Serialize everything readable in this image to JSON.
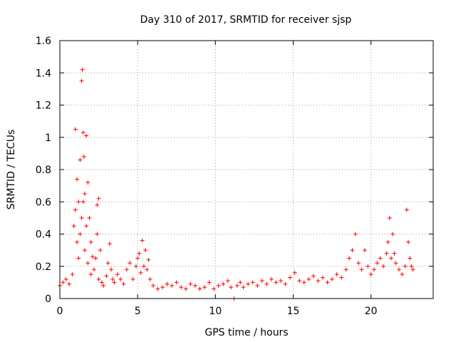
{
  "chart_data": {
    "type": "scatter",
    "title": "Day 310 of 2017, SRMTID for receiver sjsp",
    "xlabel": "GPS time / hours",
    "ylabel": "SRMTID / TECUs",
    "xlim": [
      0,
      24
    ],
    "ylim": [
      0,
      1.6
    ],
    "xticks": [
      0,
      5,
      10,
      15,
      20
    ],
    "xtick_labels": [
      "0",
      "5",
      "10",
      "15",
      "20"
    ],
    "yticks": [
      0,
      0.2,
      0.4,
      0.6,
      0.8,
      1.0,
      1.2,
      1.4,
      1.6
    ],
    "ytick_labels": [
      "0",
      "0.2",
      "0.4",
      "0.6",
      "0.8",
      "1",
      "1.2",
      "1.4",
      "1.6"
    ],
    "grid": true,
    "marker": "+",
    "color": "#ff0000",
    "series": [
      {
        "name": "SRMTID",
        "x": [
          0.0,
          0.2,
          0.4,
          0.6,
          0.8,
          0.9,
          1.0,
          1.0,
          1.1,
          1.1,
          1.2,
          1.2,
          1.3,
          1.3,
          1.4,
          1.4,
          1.45,
          1.5,
          1.5,
          1.55,
          1.6,
          1.6,
          1.7,
          1.7,
          1.8,
          1.8,
          1.9,
          2.0,
          2.0,
          2.1,
          2.2,
          2.3,
          2.4,
          2.4,
          2.5,
          2.5,
          2.6,
          2.7,
          2.8,
          3.0,
          3.1,
          3.2,
          3.3,
          3.4,
          3.5,
          3.7,
          3.9,
          4.1,
          4.3,
          4.5,
          4.7,
          4.9,
          5.0,
          5.1,
          5.2,
          5.3,
          5.4,
          5.5,
          5.6,
          5.7,
          5.8,
          6.0,
          6.3,
          6.6,
          6.9,
          7.2,
          7.5,
          7.8,
          8.1,
          8.4,
          8.7,
          9.0,
          9.3,
          9.6,
          9.9,
          10.2,
          10.5,
          10.8,
          11.0,
          11.2,
          11.4,
          11.6,
          11.8,
          12.1,
          12.4,
          12.7,
          13.0,
          13.3,
          13.6,
          13.9,
          14.2,
          14.5,
          14.8,
          15.1,
          15.4,
          15.7,
          16.0,
          16.3,
          16.6,
          16.9,
          17.2,
          17.5,
          17.8,
          18.1,
          18.4,
          18.6,
          18.8,
          19.0,
          19.2,
          19.4,
          19.6,
          19.8,
          20.0,
          20.2,
          20.4,
          20.6,
          20.8,
          21.0,
          21.1,
          21.2,
          21.3,
          21.4,
          21.5,
          21.6,
          21.8,
          22.0,
          22.2,
          22.3,
          22.4,
          22.5,
          22.6,
          22.7
        ],
        "y": [
          0.08,
          0.1,
          0.12,
          0.09,
          0.15,
          0.45,
          1.05,
          0.55,
          0.74,
          0.35,
          0.6,
          0.25,
          0.86,
          0.4,
          1.35,
          0.5,
          1.42,
          1.03,
          0.6,
          0.88,
          0.65,
          0.3,
          1.01,
          0.45,
          0.72,
          0.22,
          0.5,
          0.35,
          0.15,
          0.26,
          0.18,
          0.25,
          0.58,
          0.4,
          0.62,
          0.12,
          0.3,
          0.1,
          0.08,
          0.14,
          0.22,
          0.34,
          0.18,
          0.12,
          0.1,
          0.15,
          0.12,
          0.09,
          0.18,
          0.22,
          0.12,
          0.2,
          0.25,
          0.28,
          0.16,
          0.36,
          0.2,
          0.3,
          0.18,
          0.24,
          0.12,
          0.08,
          0.06,
          0.07,
          0.09,
          0.08,
          0.1,
          0.07,
          0.06,
          0.09,
          0.08,
          0.06,
          0.07,
          0.1,
          0.06,
          0.08,
          0.09,
          0.11,
          0.07,
          0.0,
          0.08,
          0.1,
          0.07,
          0.09,
          0.1,
          0.08,
          0.11,
          0.09,
          0.12,
          0.1,
          0.11,
          0.09,
          0.13,
          0.16,
          0.11,
          0.1,
          0.12,
          0.14,
          0.11,
          0.13,
          0.1,
          0.12,
          0.15,
          0.13,
          0.18,
          0.25,
          0.3,
          0.4,
          0.22,
          0.18,
          0.3,
          0.2,
          0.15,
          0.18,
          0.22,
          0.25,
          0.2,
          0.28,
          0.35,
          0.5,
          0.25,
          0.4,
          0.28,
          0.22,
          0.18,
          0.15,
          0.2,
          0.55,
          0.35,
          0.25,
          0.2,
          0.18
        ]
      }
    ]
  }
}
